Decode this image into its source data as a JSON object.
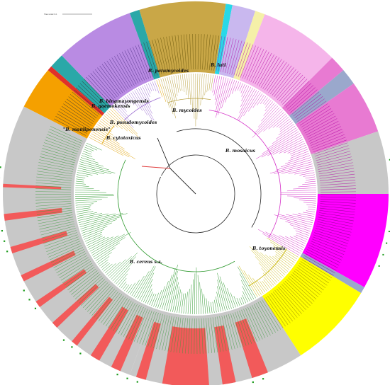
{
  "scale": {
    "label": "Tree scale: 0.1"
  },
  "colors": {
    "grey": "#c8c8c8",
    "orange": "#f5a000",
    "red": "#e0302a",
    "purple": "#b98be3",
    "teal": "#2aa8a8",
    "cyan": "#28d8e8",
    "gold": "#c9a747",
    "lightpurple": "#c9b8ef",
    "paleyellow": "#f5f0a8",
    "pink": "#f5b5ea",
    "hotpink": "#e87ad2",
    "steelblue": "#9aa8cc",
    "magenta": "#ff00ff",
    "yellow": "#ffff00",
    "salmon": "#f25a5a",
    "green": "#3a9a3a"
  },
  "clades": [
    {
      "id": "paramycoides",
      "label": "B. paramycoides"
    },
    {
      "id": "luti",
      "label": "B. luti"
    },
    {
      "id": "bingmayongensis",
      "label": "B. bingmayongensis"
    },
    {
      "id": "gaemokensis",
      "label": "B. gaemokensis"
    },
    {
      "id": "mycoides",
      "label": "B. mycoides"
    },
    {
      "id": "pseudomycoides",
      "label": "B. pseudomycoides"
    },
    {
      "id": "manliponensis",
      "label": "\"B. manliponensis\""
    },
    {
      "id": "cytotoxicus",
      "label": "B. cytotoxicus"
    },
    {
      "id": "mosaicus",
      "label": "B. mosaicus"
    },
    {
      "id": "toyonensis",
      "label": "B. toyonensis"
    },
    {
      "id": "cereus",
      "label": "B. cereus s.s."
    }
  ]
}
